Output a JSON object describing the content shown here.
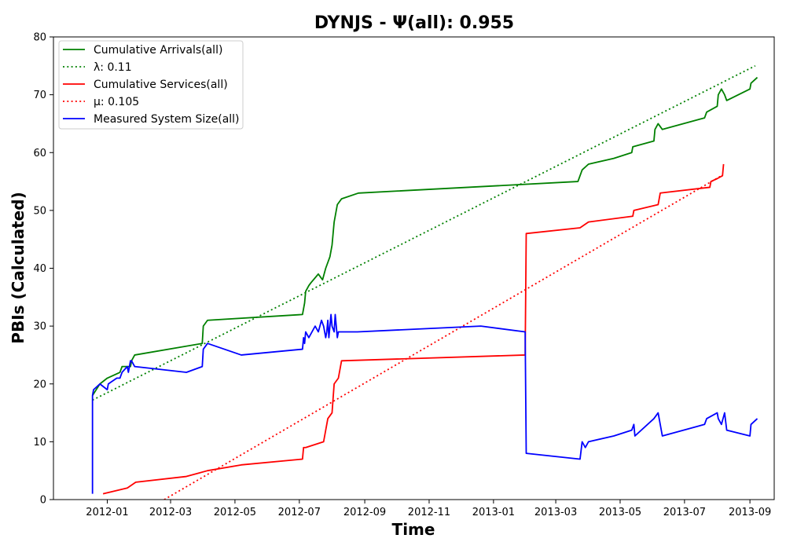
{
  "chart_data": {
    "type": "line",
    "title": "DYNJS -  Ψ(all): 0.955",
    "xlabel": "Time",
    "ylabel": "PBIs (Calculated)",
    "xlim": [
      "2011-11-11",
      "2013-09-24"
    ],
    "ylim": [
      0,
      80
    ],
    "x_ticks": [
      "2012-01",
      "2012-03",
      "2012-05",
      "2012-07",
      "2012-09",
      "2012-11",
      "2013-01",
      "2013-03",
      "2013-05",
      "2013-07",
      "2013-09"
    ],
    "y_ticks": [
      0,
      10,
      20,
      30,
      40,
      50,
      60,
      70,
      80
    ],
    "grid": false,
    "legend_position": "upper-left",
    "series": [
      {
        "name": "Cumulative Arrivals(all)",
        "color": "#008000",
        "style": "solid",
        "x": [
          "2011-12-18",
          "2011-12-25",
          "2012-01-01",
          "2012-01-13",
          "2012-01-15",
          "2012-01-23",
          "2012-01-24",
          "2012-01-27",
          "2012-03-31",
          "2012-04-01",
          "2012-04-05",
          "2012-07-04",
          "2012-07-06",
          "2012-07-07",
          "2012-07-10",
          "2012-07-12",
          "2012-07-19",
          "2012-07-21",
          "2012-07-23",
          "2012-07-26",
          "2012-07-30",
          "2012-08-01",
          "2012-08-02",
          "2012-08-03",
          "2012-08-04",
          "2012-08-06",
          "2012-08-10",
          "2012-08-26",
          "2013-03-22",
          "2013-03-26",
          "2013-04-01",
          "2013-04-25",
          "2013-05-12",
          "2013-05-13",
          "2013-06-02",
          "2013-06-03",
          "2013-06-06",
          "2013-06-10",
          "2013-07-20",
          "2013-07-22",
          "2013-08-01",
          "2013-08-02",
          "2013-08-05",
          "2013-08-08",
          "2013-08-10",
          "2013-09-01",
          "2013-09-02",
          "2013-09-08"
        ],
        "values": [
          18,
          20,
          21,
          22,
          23,
          23,
          24,
          25,
          27,
          30,
          31,
          32,
          34,
          36,
          37,
          37.5,
          39,
          38.5,
          38,
          40,
          42,
          44,
          46,
          48,
          49,
          51,
          52,
          53,
          55,
          57,
          58,
          59,
          60,
          61,
          62,
          64,
          65,
          64,
          66,
          67,
          68,
          70,
          71,
          70,
          69,
          71,
          72,
          73
        ]
      },
      {
        "name": "λ: 0.11",
        "color": "#008000",
        "style": "dotted",
        "x": [
          "2011-12-18",
          "2013-09-06"
        ],
        "values": [
          17.2,
          75
        ]
      },
      {
        "name": "Cumulative Services(all)",
        "color": "#ff0000",
        "style": "solid",
        "x": [
          "2011-12-28",
          "2012-01-20",
          "2012-01-28",
          "2012-03-16",
          "2012-04-05",
          "2012-05-07",
          "2012-07-04",
          "2012-07-05",
          "2012-07-07",
          "2012-07-24",
          "2012-07-26",
          "2012-07-28",
          "2012-08-01",
          "2012-08-03",
          "2012-08-07",
          "2012-08-10",
          "2013-01-31",
          "2013-02-01",
          "2013-03-24",
          "2013-04-01",
          "2013-05-13",
          "2013-05-14",
          "2013-06-06",
          "2013-06-08",
          "2013-07-25",
          "2013-07-26",
          "2013-08-01",
          "2013-08-06",
          "2013-08-07"
        ],
        "values": [
          1,
          2,
          3,
          4,
          5,
          6,
          7,
          9,
          9,
          10,
          12,
          14,
          15,
          20,
          21,
          24,
          25,
          46,
          47,
          48,
          49,
          50,
          51,
          53,
          54,
          55,
          55.5,
          56,
          58
        ]
      },
      {
        "name": "μ: 0.105",
        "color": "#ff0000",
        "style": "dotted",
        "x": [
          "2012-02-24",
          "2013-08-05"
        ],
        "values": [
          0,
          56
        ]
      },
      {
        "name": "Measured System Size(all)",
        "color": "#0000ff",
        "style": "solid",
        "x": [
          "2011-12-18",
          "2011-12-18",
          "2011-12-19",
          "2011-12-25",
          "2012-01-01",
          "2012-01-02",
          "2012-01-10",
          "2012-01-13",
          "2012-01-15",
          "2012-01-20",
          "2012-01-21",
          "2012-01-23",
          "2012-01-24",
          "2012-01-27",
          "2012-03-16",
          "2012-03-31",
          "2012-04-01",
          "2012-04-05",
          "2012-05-07",
          "2012-07-04",
          "2012-07-05",
          "2012-07-06",
          "2012-07-07",
          "2012-07-10",
          "2012-07-16",
          "2012-07-19",
          "2012-07-22",
          "2012-07-24",
          "2012-07-26",
          "2012-07-27",
          "2012-07-28",
          "2012-07-29",
          "2012-07-31",
          "2012-08-01",
          "2012-08-03",
          "2012-08-04",
          "2012-08-06",
          "2012-08-07",
          "2012-08-09",
          "2012-08-25",
          "2012-12-20",
          "2013-01-31",
          "2013-02-01",
          "2013-03-24",
          "2013-03-26",
          "2013-03-29",
          "2013-04-01",
          "2013-04-25",
          "2013-05-12",
          "2013-05-14",
          "2013-05-15",
          "2013-06-02",
          "2013-06-06",
          "2013-06-10",
          "2013-07-20",
          "2013-07-22",
          "2013-08-01",
          "2013-08-02",
          "2013-08-05",
          "2013-08-08",
          "2013-08-10",
          "2013-09-01",
          "2013-09-02",
          "2013-09-08"
        ],
        "values": [
          1,
          18,
          19,
          20,
          19,
          20,
          21,
          21,
          22,
          23,
          22,
          24,
          24,
          23,
          22,
          23,
          26,
          27,
          25,
          26,
          28,
          27,
          29,
          28,
          30,
          29,
          31,
          30,
          28,
          29,
          31,
          28,
          32,
          30,
          29,
          32,
          28,
          29,
          29,
          29,
          30,
          29,
          8,
          7,
          10,
          9,
          10,
          11,
          12,
          13,
          11,
          14,
          15,
          11,
          13,
          14,
          15,
          14,
          13,
          15,
          12,
          11,
          13,
          14
        ]
      }
    ]
  }
}
